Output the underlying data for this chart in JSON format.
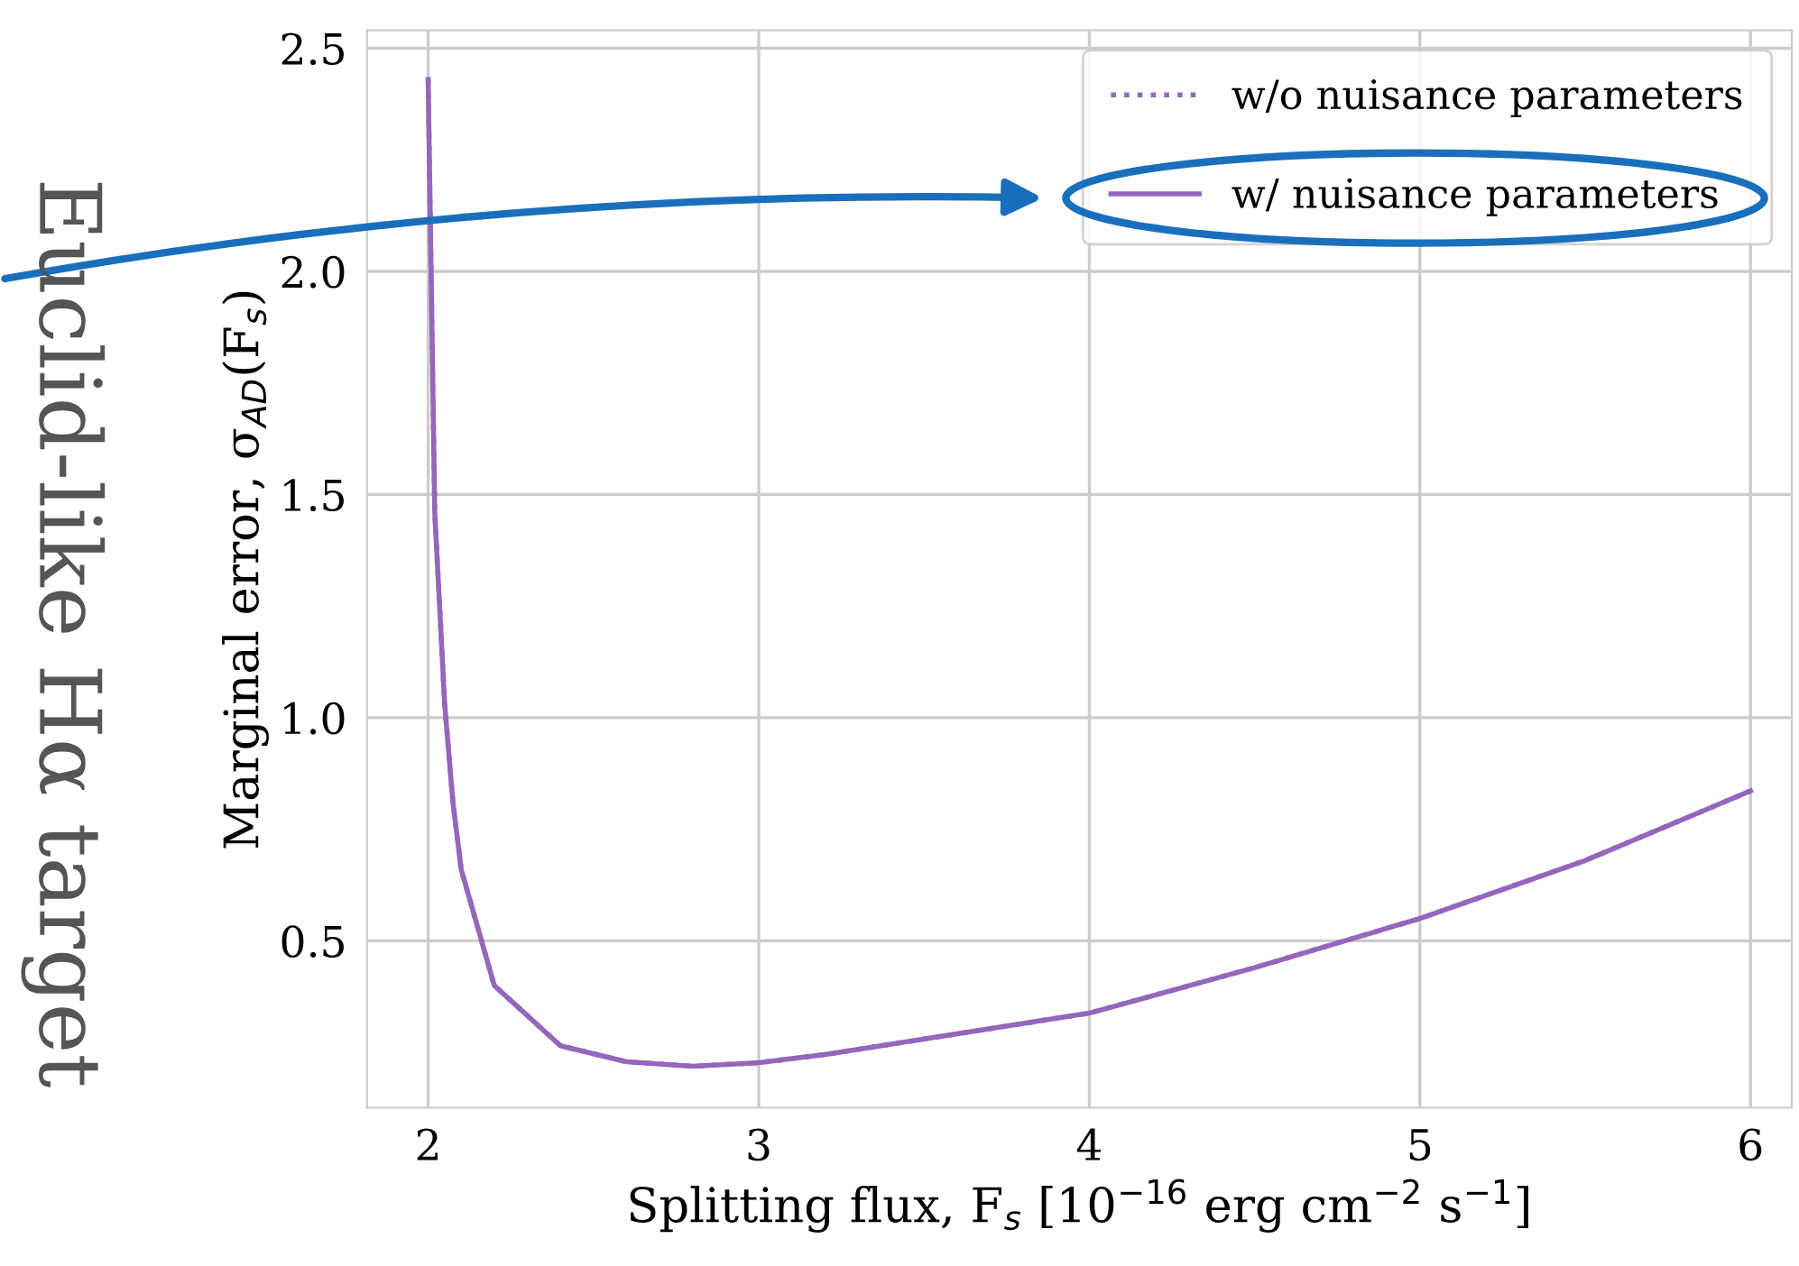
{
  "chart_data": {
    "type": "line",
    "xlabel": "Splitting flux, F$_{s}$ [10$^{−16}$ erg cm$^{−2}$ s$^{−1}$]",
    "ylabel": "Marginal error, σ$_{AD}$(F$_{s}$)",
    "x": [
      2.0,
      2.02,
      2.05,
      2.075,
      2.1,
      2.2,
      2.4,
      2.6,
      2.8,
      3.0,
      3.2,
      3.5,
      4.0,
      4.5,
      5.0,
      5.5,
      6.0
    ],
    "series": [
      {
        "name": "w/o nuisance parameters",
        "color": "#9467bd",
        "line_style": "dotted",
        "values": [
          2.43,
          1.46,
          1.03,
          0.81,
          0.66,
          0.4,
          0.265,
          0.229,
          0.219,
          0.227,
          0.245,
          0.28,
          0.338,
          0.44,
          0.55,
          0.68,
          0.836
        ]
      },
      {
        "name": "w/ nuisance parameters",
        "color": "#9467bd",
        "line_style": "solid",
        "values": [
          2.43,
          1.46,
          1.03,
          0.81,
          0.66,
          0.4,
          0.265,
          0.229,
          0.219,
          0.227,
          0.245,
          0.28,
          0.338,
          0.44,
          0.55,
          0.68,
          0.836
        ]
      }
    ],
    "xlim": [
      1.815,
      6.125
    ],
    "ylim": [
      0.126,
      2.54
    ],
    "xticks": [
      2,
      3,
      4,
      5,
      6
    ],
    "yticks": [
      0.5,
      {
        "value": 1,
        "label": "1.0"
      },
      1.5,
      {
        "value": 2,
        "label": "2.0"
      },
      2.5
    ],
    "grid": true,
    "legend": "top right",
    "marker": "none",
    "annotations": [
      "Euclid-like Hα target"
    ]
  }
}
